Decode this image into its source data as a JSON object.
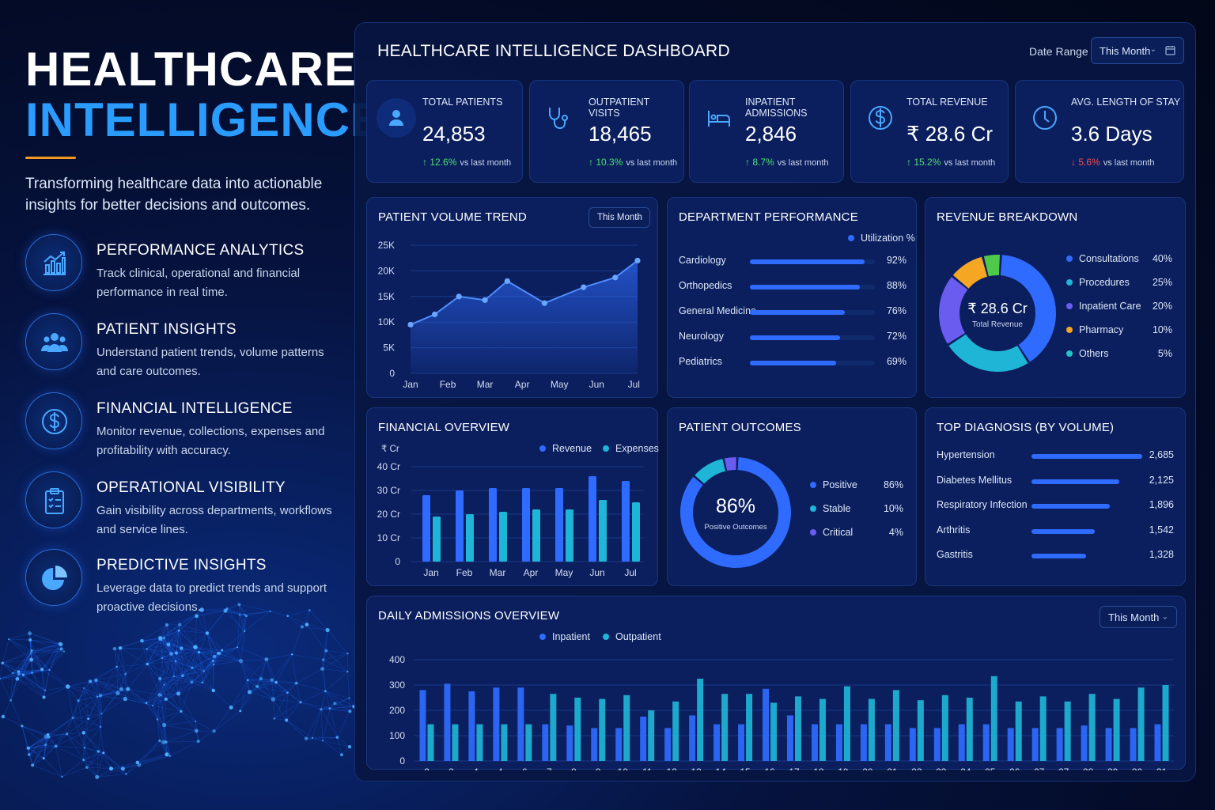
{
  "hero": {
    "title_line1": "HEALTHCARE",
    "title_line2": "INTELLIGENCE",
    "tagline": "Transforming healthcare data into actionable insights for better decisions and outcomes."
  },
  "features": [
    {
      "icon": "bar-chart-trend-icon",
      "title": "PERFORMANCE ANALYTICS",
      "desc": "Track clinical, operational and financial performance in real time."
    },
    {
      "icon": "people-group-icon",
      "title": "PATIENT INSIGHTS",
      "desc": "Understand patient trends, volume patterns and care outcomes."
    },
    {
      "icon": "dollar-coin-icon",
      "title": "FINANCIAL INTELLIGENCE",
      "desc": "Monitor revenue, collections, expenses and profitability with accuracy."
    },
    {
      "icon": "clipboard-checklist-icon",
      "title": "OPERATIONAL VISIBILITY",
      "desc": "Gain visibility across departments, workflows and service lines."
    },
    {
      "icon": "pie-chart-icon",
      "title": "PREDICTIVE INSIGHTS",
      "desc": "Leverage data to predict trends and support proactive decisions."
    }
  ],
  "dashboard": {
    "title": "HEALTHCARE INTELLIGENCE DASHBOARD",
    "date_range_label": "Date Range",
    "date_range_value": "This Month"
  },
  "kpis": [
    {
      "icon": "user-icon",
      "label": "TOTAL PATIENTS",
      "value": "24,853",
      "delta": "↑ 12.6%",
      "direction": "up",
      "vs": "vs last month"
    },
    {
      "icon": "stethoscope-icon",
      "label": "OUTPATIENT VISITS",
      "value": "18,465",
      "delta": "↑ 10.3%",
      "direction": "up",
      "vs": "vs last month"
    },
    {
      "icon": "hospital-bed-icon",
      "label": "INPATIENT ADMISSIONS",
      "value": "2,846",
      "delta": "↑ 8.7%",
      "direction": "up",
      "vs": "vs last month"
    },
    {
      "icon": "dollar-coin-icon",
      "label": "TOTAL REVENUE",
      "value": "₹ 28.6 Cr",
      "delta": "↑ 15.2%",
      "direction": "up",
      "vs": "vs last month"
    },
    {
      "icon": "clock-icon",
      "label": "AVG. LENGTH OF STAY",
      "value": "3.6 Days",
      "delta": "↓ 5.6%",
      "direction": "down",
      "vs": "vs last month"
    }
  ],
  "patient_volume": {
    "title": "PATIENT VOLUME TREND",
    "filter": "This Month"
  },
  "department_performance": {
    "title": "DEPARTMENT PERFORMANCE",
    "legend": "Utilization %",
    "rows": [
      {
        "name": "Cardiology",
        "value": 92,
        "label": "92%"
      },
      {
        "name": "Orthopedics",
        "value": 88,
        "label": "88%"
      },
      {
        "name": "General Medicine",
        "value": 76,
        "label": "76%"
      },
      {
        "name": "Neurology",
        "value": 72,
        "label": "72%"
      },
      {
        "name": "Pediatrics",
        "value": 69,
        "label": "69%"
      }
    ]
  },
  "revenue_breakdown": {
    "title": "REVENUE BREAKDOWN",
    "center_value": "₹ 28.6 Cr",
    "center_label": "Total Revenue"
  },
  "financial_overview": {
    "title": "FINANCIAL OVERVIEW",
    "unit": "₹ Cr"
  },
  "patient_outcomes": {
    "title": "PATIENT OUTCOMES",
    "center_value": "86%",
    "center_label": "Positive Outcomes"
  },
  "top_diagnosis": {
    "title": "TOP DIAGNOSIS (BY VOLUME)",
    "max": 2685,
    "rows": [
      {
        "name": "Hypertension",
        "value": 2685,
        "label": "2,685"
      },
      {
        "name": "Diabetes Mellitus",
        "value": 2125,
        "label": "2,125"
      },
      {
        "name": "Respiratory Infection",
        "value": 1896,
        "label": "1,896"
      },
      {
        "name": "Arthritis",
        "value": 1542,
        "label": "1,542"
      },
      {
        "name": "Gastritis",
        "value": 1328,
        "label": "1,328"
      }
    ]
  },
  "daily_admissions": {
    "title": "DAILY ADMISSIONS OVERVIEW",
    "filter": "This Month"
  },
  "colors": {
    "accent_blue": "#2f6bff",
    "cyan": "#1fb5d6",
    "purple": "#6b5cf0",
    "orange": "#f5a623",
    "green": "#4ec94a",
    "teal": "#23c4c9",
    "positive_delta": "#4ee06e",
    "negative_delta": "#ff4b4b"
  },
  "chart_data": [
    {
      "type": "line",
      "title": "PATIENT VOLUME TREND",
      "categories": [
        "Jan",
        "Feb",
        "Mar",
        "Apr",
        "May",
        "Jun",
        "Jul"
      ],
      "x": [
        0,
        0.5,
        1,
        1.5,
        2,
        2.5,
        3,
        3.5,
        4,
        4.5,
        5,
        5.5,
        6
      ],
      "values": [
        9500,
        11500,
        15000,
        14300,
        18000,
        16000,
        13700,
        15500,
        16800,
        18400,
        20500,
        22000,
        22000
      ],
      "points": [
        {
          "x": 0,
          "y": 9500
        },
        {
          "x": 0.65,
          "y": 11500
        },
        {
          "x": 1.3,
          "y": 15000
        },
        {
          "x": 2.0,
          "y": 14300
        },
        {
          "x": 2.6,
          "y": 18000
        },
        {
          "x": 3.6,
          "y": 13700
        },
        {
          "x": 4.65,
          "y": 16800
        },
        {
          "x": 5.5,
          "y": 18700
        },
        {
          "x": 6.1,
          "y": 22000
        }
      ],
      "yticks": [
        "0",
        "5K",
        "10K",
        "15K",
        "20K",
        "25K"
      ],
      "ylim": [
        0,
        25000
      ],
      "grid": true
    },
    {
      "type": "bar",
      "title": "FINANCIAL OVERVIEW",
      "categories": [
        "Jan",
        "Feb",
        "Mar",
        "Apr",
        "May",
        "Jun",
        "Jul"
      ],
      "series": [
        {
          "name": "Revenue",
          "values": [
            28,
            30,
            31,
            31,
            31,
            36,
            34
          ]
        },
        {
          "name": "Expenses",
          "values": [
            19,
            20,
            21,
            22,
            22,
            26,
            25
          ]
        }
      ],
      "yticks": [
        "0",
        "10 Cr",
        "20 Cr",
        "30 Cr",
        "40 Cr"
      ],
      "ylim": [
        0,
        40
      ],
      "grid": true
    },
    {
      "type": "pie",
      "title": "REVENUE BREAKDOWN",
      "slices": [
        {
          "name": "Consultations",
          "value": 40,
          "label": "40%"
        },
        {
          "name": "Procedures",
          "value": 25,
          "label": "25%"
        },
        {
          "name": "Inpatient Care",
          "value": 20,
          "label": "20%"
        },
        {
          "name": "Pharmacy",
          "value": 10,
          "label": "10%"
        },
        {
          "name": "Others",
          "value": 5,
          "label": "5%"
        }
      ]
    },
    {
      "type": "pie",
      "title": "PATIENT OUTCOMES",
      "slices": [
        {
          "name": "Positive",
          "value": 86,
          "label": "86%"
        },
        {
          "name": "Stable",
          "value": 10,
          "label": "10%"
        },
        {
          "name": "Critical",
          "value": 4,
          "label": "4%"
        }
      ]
    },
    {
      "type": "bar",
      "title": "DAILY ADMISSIONS OVERVIEW",
      "categories": [
        "2",
        "3",
        "4",
        "4",
        "6",
        "7",
        "8",
        "9",
        "10",
        "11",
        "12",
        "13",
        "14",
        "15",
        "16",
        "17",
        "18",
        "19",
        "20",
        "21",
        "22",
        "23",
        "24",
        "25",
        "26",
        "27",
        "27",
        "28",
        "29",
        "30",
        "31"
      ],
      "series": [
        {
          "name": "Inpatient",
          "values": [
            280,
            305,
            275,
            290,
            290,
            145,
            140,
            130,
            130,
            175,
            130,
            180,
            145,
            145,
            285,
            180,
            145,
            145,
            145,
            145,
            130,
            130,
            145,
            145,
            130,
            130,
            130,
            140,
            130,
            130,
            145
          ]
        },
        {
          "name": "Outpatient",
          "values": [
            145,
            145,
            145,
            145,
            145,
            265,
            250,
            245,
            260,
            200,
            235,
            325,
            265,
            265,
            230,
            255,
            245,
            295,
            245,
            280,
            240,
            260,
            250,
            335,
            235,
            255,
            235,
            265,
            245,
            290,
            300
          ]
        }
      ],
      "yticks": [
        "0",
        "100",
        "200",
        "300",
        "400"
      ],
      "ylim": [
        0,
        400
      ],
      "grid": true
    }
  ]
}
